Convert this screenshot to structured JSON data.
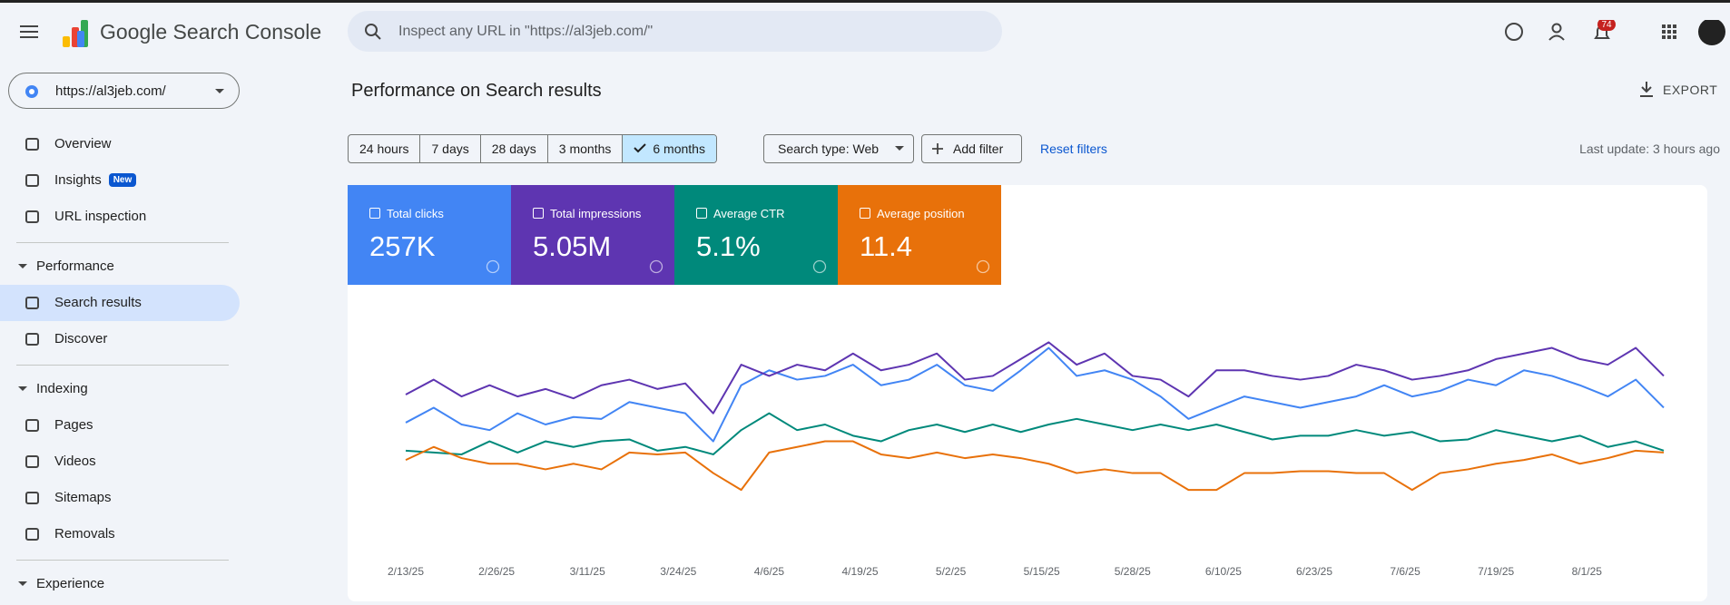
{
  "header": {
    "product": "Google Search Console",
    "search_placeholder": "Inspect any URL in \"https://al3jeb.com/\"",
    "notifications": "74"
  },
  "property": "https://al3jeb.com/",
  "nav": {
    "top": [
      "Overview",
      "Insights",
      "URL inspection"
    ],
    "badge": "New",
    "sections": [
      {
        "title": "Performance",
        "items": [
          "Search results",
          "Discover"
        ]
      },
      {
        "title": "Indexing",
        "items": [
          "Pages",
          "Videos",
          "Sitemaps",
          "Removals"
        ]
      },
      {
        "title": "Experience",
        "items": []
      }
    ],
    "selected": "Search results"
  },
  "page": {
    "title": "Performance on Search results",
    "export": "EXPORT",
    "date_ranges": [
      "24 hours",
      "7 days",
      "28 days",
      "3 months",
      "6 months"
    ],
    "selected_range": "6 months",
    "search_type": "Search type: Web",
    "add_filter": "Add filter",
    "reset": "Reset filters",
    "last_update": "Last update: 3 hours ago"
  },
  "chart_data": {
    "type": "line",
    "xtick_labels": [
      "2/13/25",
      "2/26/25",
      "3/11/25",
      "3/24/25",
      "4/6/25",
      "4/19/25",
      "5/2/25",
      "5/15/25",
      "5/28/25",
      "6/10/25",
      "6/23/25",
      "7/6/25",
      "7/19/25",
      "8/1/25"
    ],
    "ylim": [
      0,
      100
    ],
    "series": [
      {
        "name": "Total clicks",
        "total": "257K",
        "color": "#4285f4",
        "values": [
          51,
          59,
          50,
          47,
          56,
          50,
          54,
          53,
          62,
          59,
          56,
          41,
          71,
          79,
          74,
          76,
          82,
          71,
          74,
          82,
          71,
          68,
          79,
          91,
          76,
          79,
          74,
          65,
          53,
          59,
          65,
          62,
          59,
          62,
          65,
          71,
          65,
          68,
          74,
          71,
          79,
          76,
          71,
          65,
          74,
          59
        ]
      },
      {
        "name": "Total impressions",
        "total": "5.05M",
        "color": "#5e35b1",
        "values": [
          66,
          74,
          65,
          71,
          65,
          69,
          64,
          71,
          74,
          69,
          72,
          56,
          82,
          76,
          82,
          79,
          88,
          79,
          82,
          88,
          74,
          76,
          85,
          94,
          82,
          88,
          76,
          74,
          65,
          79,
          79,
          76,
          74,
          76,
          82,
          79,
          74,
          76,
          79,
          85,
          88,
          91,
          85,
          82,
          91,
          76
        ]
      },
      {
        "name": "Average CTR",
        "total": "5.1%",
        "color": "#00897b",
        "values": [
          36,
          35,
          34,
          41,
          35,
          41,
          38,
          41,
          42,
          36,
          38,
          34,
          47,
          56,
          47,
          50,
          44,
          41,
          47,
          50,
          46,
          50,
          46,
          50,
          53,
          50,
          47,
          50,
          47,
          50,
          46,
          42,
          44,
          44,
          47,
          44,
          46,
          41,
          42,
          47,
          44,
          41,
          44,
          38,
          41,
          36
        ]
      },
      {
        "name": "Average position",
        "total": "11.4",
        "color": "#e8710a",
        "values": [
          31,
          38,
          32,
          29,
          29,
          26,
          29,
          26,
          35,
          34,
          35,
          24,
          15,
          35,
          38,
          41,
          41,
          34,
          32,
          35,
          32,
          34,
          32,
          29,
          24,
          26,
          24,
          24,
          15,
          15,
          24,
          24,
          25,
          25,
          24,
          24,
          15,
          24,
          26,
          29,
          31,
          34,
          29,
          32,
          36,
          35
        ]
      }
    ]
  }
}
